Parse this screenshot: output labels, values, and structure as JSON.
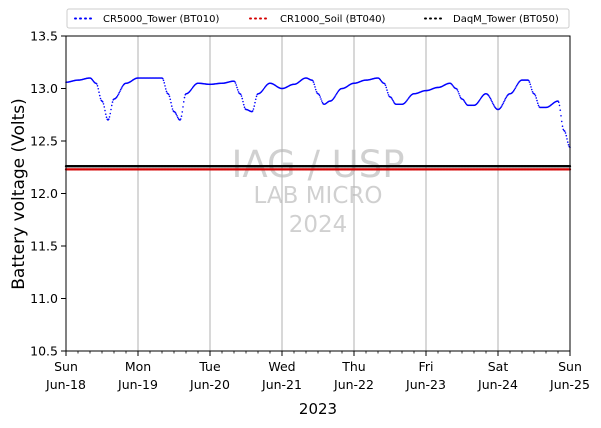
{
  "chart_data": {
    "type": "scatter",
    "title": "",
    "xlabel": "2023",
    "ylabel": "Battery voltage (Volts)",
    "ylim": [
      10.5,
      13.5
    ],
    "xlim": [
      "2023-06-18",
      "2023-06-25"
    ],
    "yticks": [
      "10.5",
      "11.0",
      "11.5",
      "12.0",
      "12.5",
      "13.0",
      "13.5"
    ],
    "xticks": [
      {
        "day": "Sun",
        "date": "Jun-18"
      },
      {
        "day": "Mon",
        "date": "Jun-19"
      },
      {
        "day": "Tue",
        "date": "Jun-20"
      },
      {
        "day": "Wed",
        "date": "Jun-21"
      },
      {
        "day": "Thu",
        "date": "Jun-22"
      },
      {
        "day": "Fri",
        "date": "Jun-23"
      },
      {
        "day": "Sat",
        "date": "Jun-24"
      },
      {
        "day": "Sun",
        "date": "Jun-25"
      }
    ],
    "grid": "vertical at major ticks",
    "legend_position": "top",
    "series": [
      {
        "name": "CR5000_Tower (BT010)",
        "color": "#0000ff",
        "x": [
          "2023-06-18 00:00",
          "2023-06-18 04:00",
          "2023-06-18 08:00",
          "2023-06-18 10:00",
          "2023-06-18 12:00",
          "2023-06-18 14:00",
          "2023-06-18 16:00",
          "2023-06-18 20:00",
          "2023-06-19 00:00",
          "2023-06-19 04:00",
          "2023-06-19 08:00",
          "2023-06-19 10:00",
          "2023-06-19 12:00",
          "2023-06-19 14:00",
          "2023-06-19 16:00",
          "2023-06-19 20:00",
          "2023-06-20 00:00",
          "2023-06-20 04:00",
          "2023-06-20 08:00",
          "2023-06-20 10:00",
          "2023-06-20 12:00",
          "2023-06-20 14:00",
          "2023-06-20 16:00",
          "2023-06-20 20:00",
          "2023-06-21 00:00",
          "2023-06-21 04:00",
          "2023-06-21 08:00",
          "2023-06-21 10:00",
          "2023-06-21 12:00",
          "2023-06-21 14:00",
          "2023-06-21 16:00",
          "2023-06-21 20:00",
          "2023-06-22 00:00",
          "2023-06-22 04:00",
          "2023-06-22 08:00",
          "2023-06-22 10:00",
          "2023-06-22 12:00",
          "2023-06-22 14:00",
          "2023-06-22 16:00",
          "2023-06-22 20:00",
          "2023-06-23 00:00",
          "2023-06-23 04:00",
          "2023-06-23 08:00",
          "2023-06-23 10:00",
          "2023-06-23 12:00",
          "2023-06-23 14:00",
          "2023-06-23 16:00",
          "2023-06-23 20:00",
          "2023-06-24 00:00",
          "2023-06-24 04:00",
          "2023-06-24 08:00",
          "2023-06-24 10:00",
          "2023-06-24 12:00",
          "2023-06-24 14:00",
          "2023-06-24 16:00",
          "2023-06-24 20:00",
          "2023-06-24 22:00",
          "2023-06-25 00:00"
        ],
        "y": [
          13.06,
          13.08,
          13.1,
          13.05,
          12.88,
          12.7,
          12.9,
          13.05,
          13.1,
          13.1,
          13.1,
          12.95,
          12.78,
          12.7,
          12.95,
          13.05,
          13.04,
          13.05,
          13.07,
          12.95,
          12.8,
          12.78,
          12.95,
          13.05,
          13.0,
          13.04,
          13.1,
          13.08,
          12.95,
          12.85,
          12.88,
          13.0,
          13.05,
          13.08,
          13.1,
          13.05,
          12.92,
          12.85,
          12.85,
          12.95,
          12.98,
          13.01,
          13.05,
          13.0,
          12.9,
          12.84,
          12.84,
          12.95,
          12.8,
          12.95,
          13.08,
          13.08,
          12.95,
          12.82,
          12.82,
          12.88,
          12.6,
          12.44
        ]
      },
      {
        "name": "CR1000_Soil (BT040)",
        "color": "#d40000",
        "x": [
          "2023-06-18 00:00",
          "2023-06-25 00:00"
        ],
        "y": [
          12.23,
          12.23
        ]
      },
      {
        "name": "DaqM_Tower (BT050)",
        "color": "#000000",
        "x": [
          "2023-06-18 00:00",
          "2023-06-25 00:00"
        ],
        "y": [
          12.26,
          12.26
        ]
      }
    ]
  },
  "watermark": {
    "line1": "IAG / USP",
    "line2": "LAB MICRO",
    "line3": "2024"
  }
}
